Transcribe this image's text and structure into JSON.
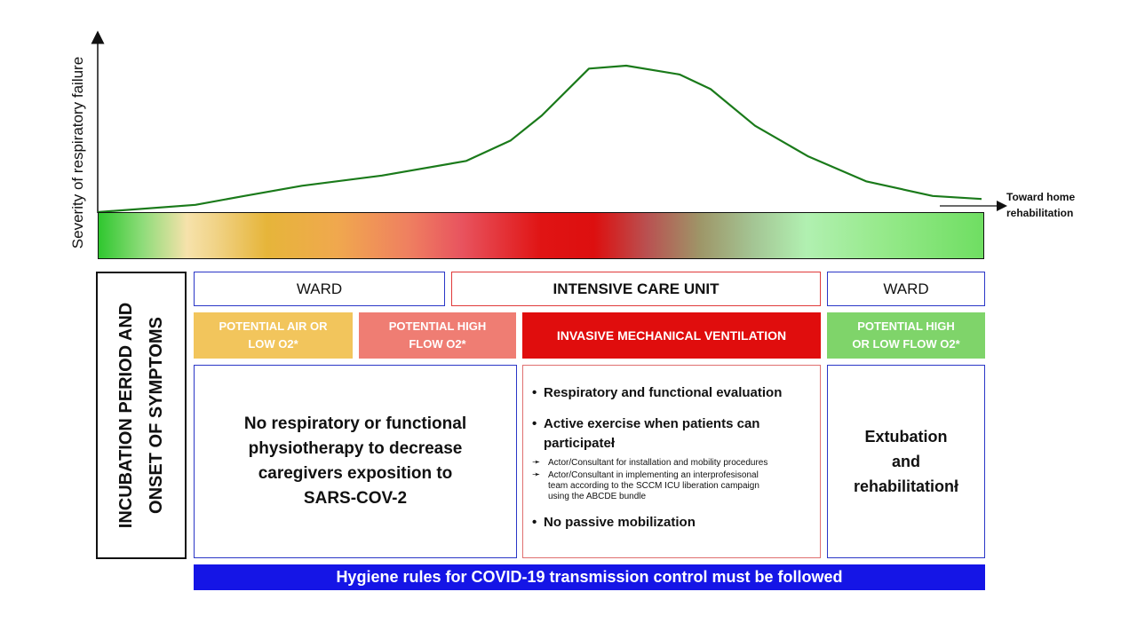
{
  "axis": {
    "ylabel": "Severity of respiratory failure",
    "toward_label": "Toward home\nrehabilitation"
  },
  "curve": {
    "color": "#1a7a1a",
    "severity_levels": [
      0,
      0.05,
      0.11,
      0.18,
      0.25,
      0.35,
      0.49,
      0.66,
      0.98,
      1.0,
      0.94,
      0.84,
      0.59,
      0.38,
      0.21,
      0.11,
      0.09
    ]
  },
  "side_label": "INCUBATION PERIOD AND\nONSET OF SYMPTOMS",
  "units": {
    "ward_left": "WARD",
    "icu": "INTENSIVE CARE UNIT",
    "ward_right": "WARD"
  },
  "oxygen": {
    "air_low": {
      "label": "POTENTIAL AIR OR\nLOW O2*",
      "color": "#f2c55c"
    },
    "high_flow": {
      "label": "POTENTIAL HIGH\nFLOW O2*",
      "color": "#ef7d73"
    },
    "imv": {
      "label": "INVASIVE MECHANICAL VENTILATION",
      "color": "#e00d0d"
    },
    "high_low": {
      "label": "POTENTIAL HIGH\nOR LOW FLOW O2*",
      "color": "#7fd46a"
    }
  },
  "content": {
    "left_text": "No respiratory or functional\nphysiotherapy to decrease\ncaregivers exposition to\nSARS-COV-2",
    "icu_bullets": {
      "b1": "Respiratory and functional evaluation",
      "b2": "Active exercise when patients can\nparticipateł",
      "s1": "Actor/Consultant for installation and mobility procedures",
      "s2": "Actor/Consultant in implementing an interprofesisonal\nteam according to the SCCM ICU liberation campaign\nusing the ABCDE bundle",
      "b3": "No passive mobilization"
    },
    "right_text": "Extubation\nand\nrehabilitationł"
  },
  "hygiene": "Hygiene rules for COVID-19 transmission control must be  followed"
}
